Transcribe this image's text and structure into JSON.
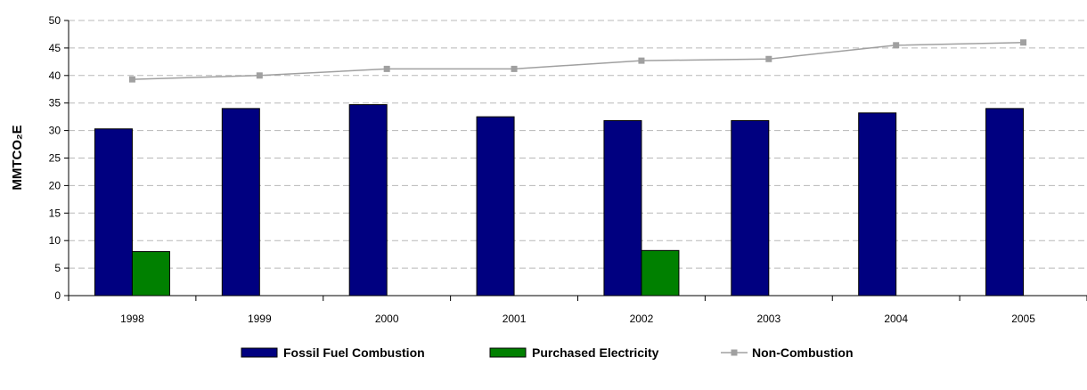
{
  "chart_data": {
    "type": "bar",
    "categories": [
      "1998",
      "1999",
      "2000",
      "2001",
      "2002",
      "2003",
      "2004",
      "2005"
    ],
    "series": [
      {
        "name": "Fossil Fuel Combustion",
        "kind": "bar",
        "color": "#000080",
        "values": [
          30.3,
          34.0,
          34.7,
          32.5,
          31.8,
          31.8,
          33.2,
          34.0
        ]
      },
      {
        "name": "Purchased Electricity",
        "kind": "bar",
        "color": "#008000",
        "values": [
          8.0,
          0,
          0,
          0,
          8.2,
          0,
          0,
          0
        ]
      },
      {
        "name": "Non-Combustion",
        "kind": "line",
        "color": "#a0a0a0",
        "values": [
          39.3,
          40.0,
          41.2,
          41.2,
          42.7,
          43.0,
          45.5,
          46.0
        ]
      }
    ],
    "ylabel": "MMTCO₂E",
    "ylim": [
      0,
      50
    ],
    "yticks": [
      0,
      5,
      10,
      15,
      20,
      25,
      30,
      35,
      40,
      45,
      50
    ],
    "grid": true,
    "legend_position": "bottom"
  }
}
